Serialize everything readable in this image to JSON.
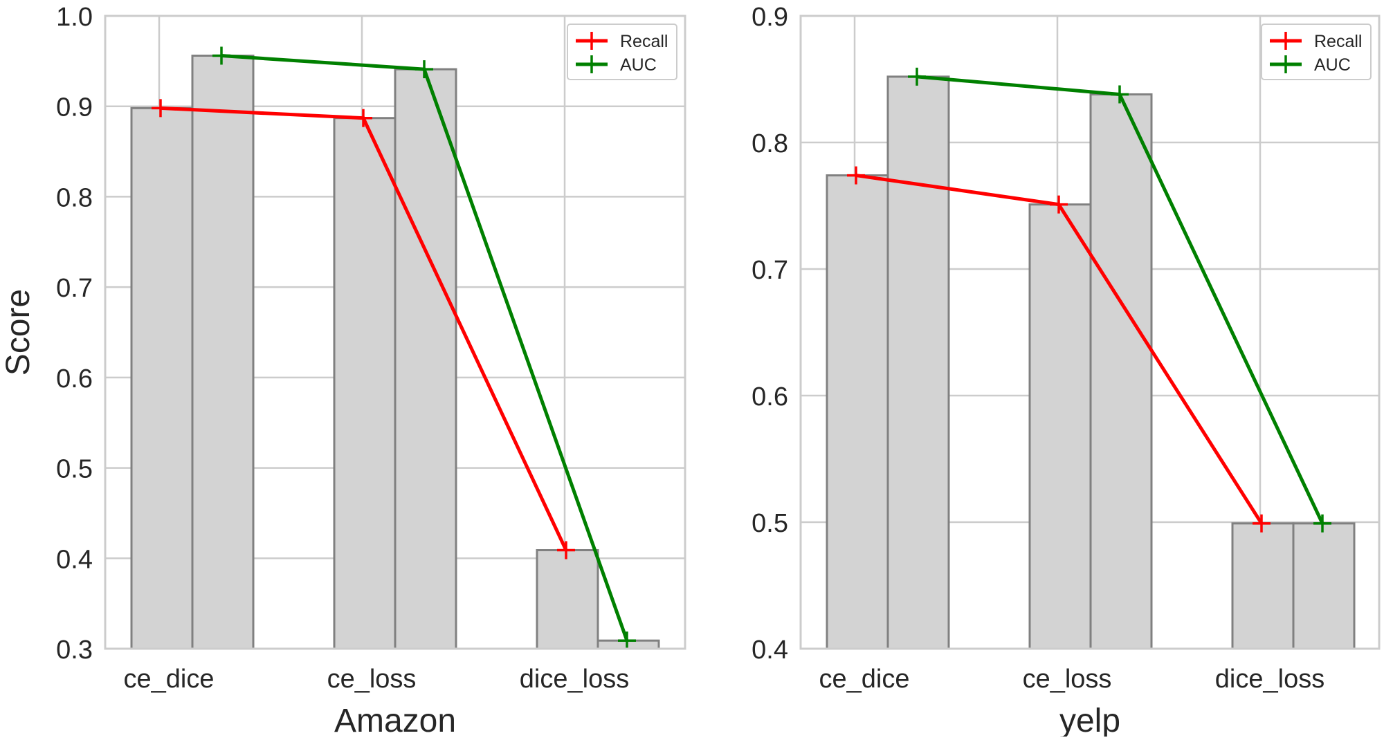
{
  "chart_data": [
    {
      "type": "bar",
      "title": "",
      "xlabel": "Amazon",
      "ylabel": "Score",
      "ylim": [
        0.3,
        1.0
      ],
      "yticks": [
        "0.3",
        "0.4",
        "0.5",
        "0.6",
        "0.7",
        "0.8",
        "0.9",
        "1.0"
      ],
      "grid": true,
      "legend_position": "top-right",
      "categories": [
        "ce_dice",
        "ce_loss",
        "dice_loss"
      ],
      "bar_series": [
        {
          "name": "Recall",
          "values": [
            0.898,
            0.887,
            0.409
          ]
        },
        {
          "name": "AUC",
          "values": [
            0.956,
            0.941,
            0.309
          ]
        }
      ],
      "series": [
        {
          "name": "Recall",
          "color": "#ff0000",
          "values": [
            0.898,
            0.887,
            0.409
          ]
        },
        {
          "name": "AUC",
          "color": "#008000",
          "values": [
            0.956,
            0.941,
            0.309
          ]
        }
      ]
    },
    {
      "type": "bar",
      "title": "",
      "xlabel": "yelp",
      "ylabel": "",
      "ylim": [
        0.4,
        0.9
      ],
      "yticks": [
        "0.4",
        "0.5",
        "0.6",
        "0.7",
        "0.8",
        "0.9"
      ],
      "grid": true,
      "legend_position": "top-right",
      "categories": [
        "ce_dice",
        "ce_loss",
        "dice_loss"
      ],
      "bar_series": [
        {
          "name": "Recall",
          "values": [
            0.774,
            0.751,
            0.499
          ]
        },
        {
          "name": "AUC",
          "values": [
            0.852,
            0.838,
            0.499
          ]
        }
      ],
      "series": [
        {
          "name": "Recall",
          "color": "#ff0000",
          "values": [
            0.774,
            0.751,
            0.499
          ]
        },
        {
          "name": "AUC",
          "color": "#008000",
          "values": [
            0.852,
            0.838,
            0.499
          ]
        }
      ]
    }
  ],
  "style": {
    "bar_fill": "#d3d3d3",
    "bar_edge": "#808080",
    "grid_color": "#cccccc",
    "axes_edge": "#cccccc"
  }
}
